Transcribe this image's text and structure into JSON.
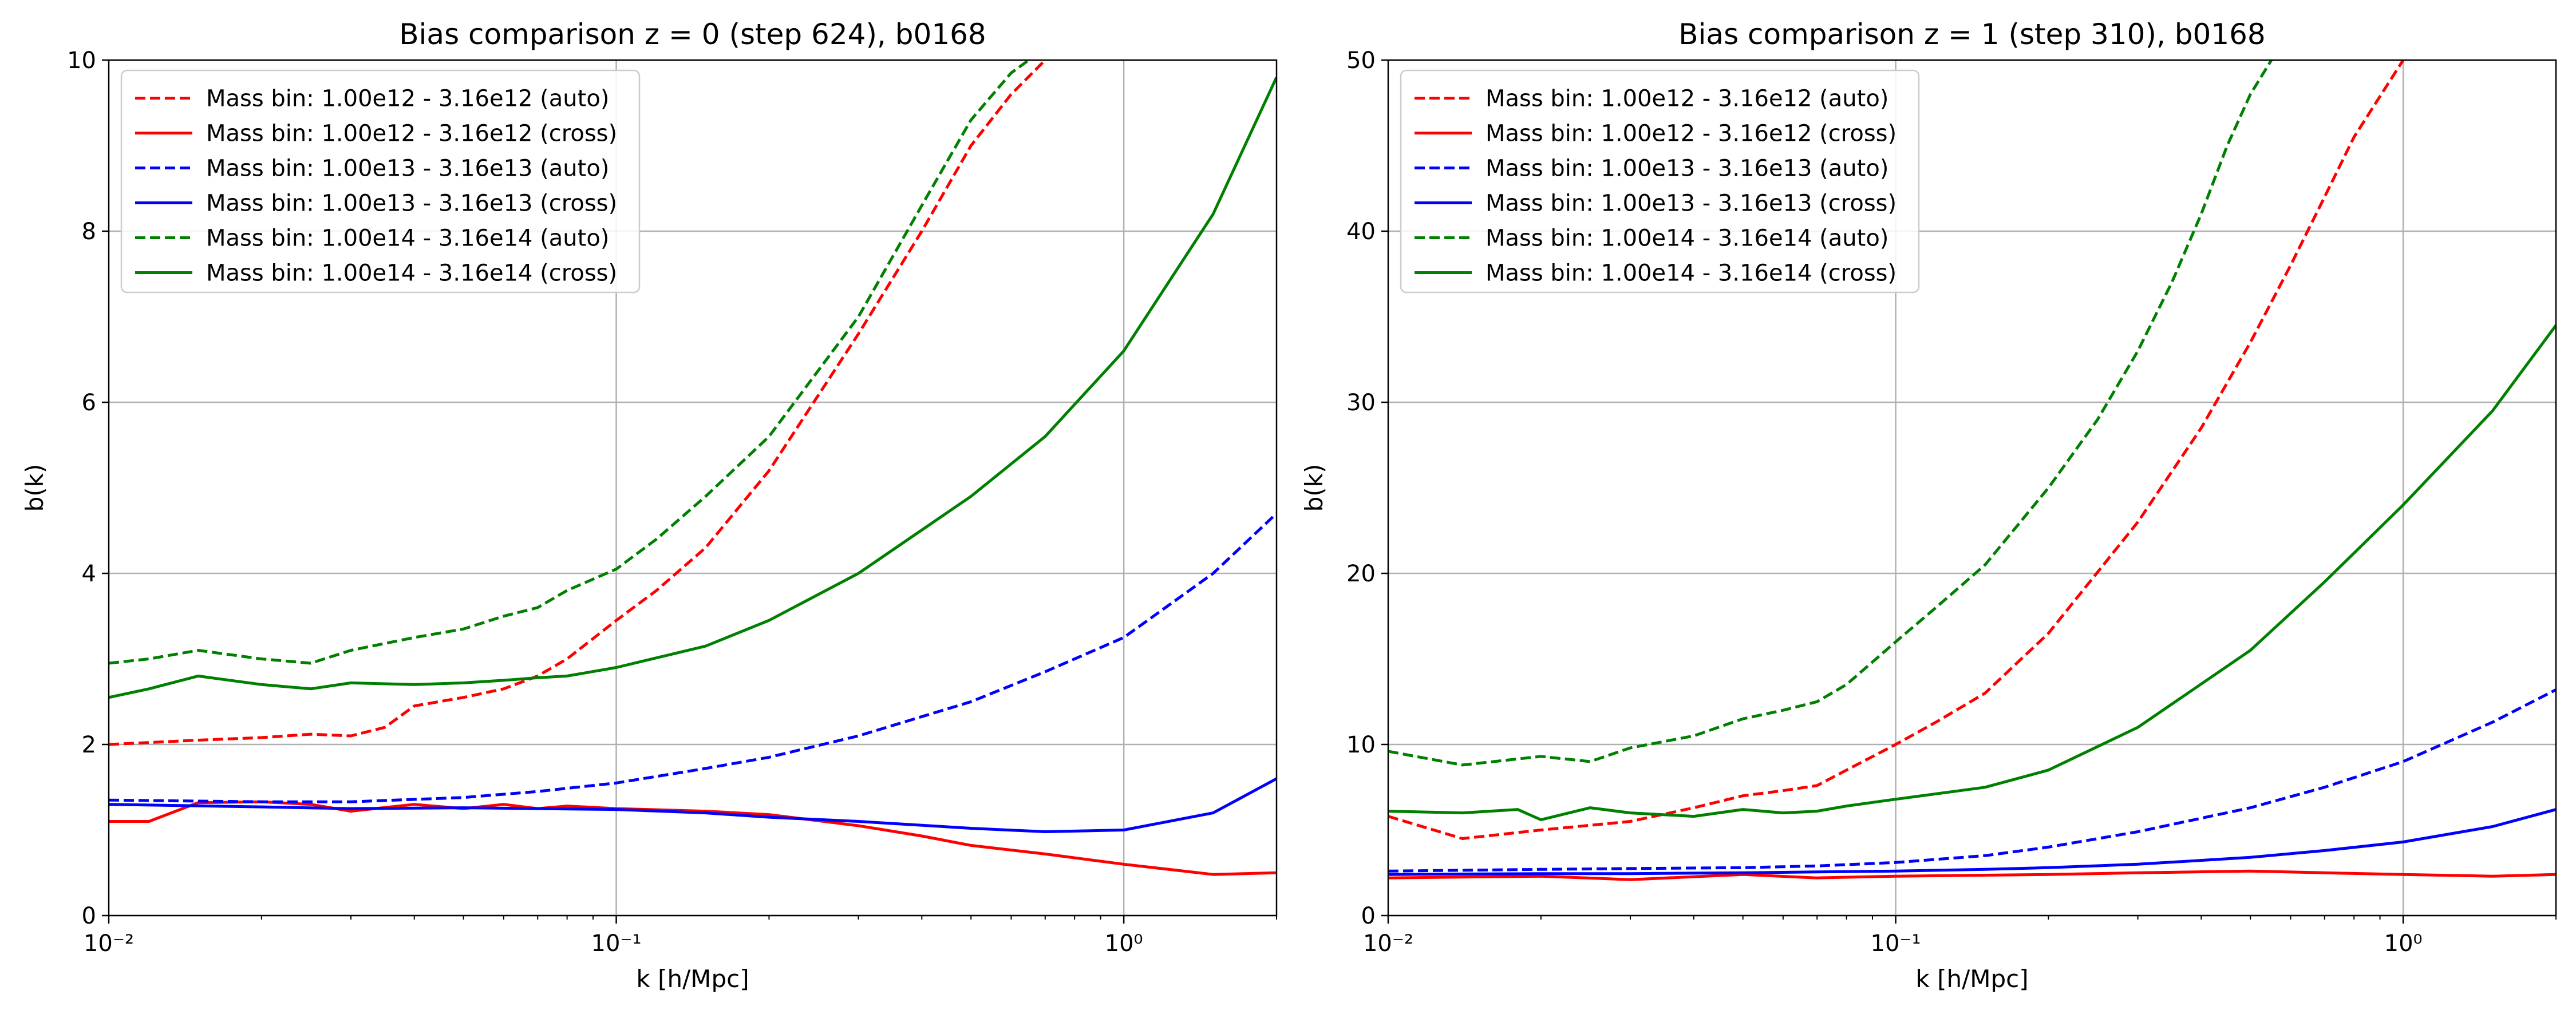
{
  "chart_data": [
    {
      "type": "line",
      "title": "Bias comparison z = 0 (step 624), b0168",
      "xlabel": "k [h/Mpc]",
      "ylabel": "b(k)",
      "xscale": "log",
      "xlim": [
        0.01,
        2.0
      ],
      "ylim": [
        0,
        10
      ],
      "yticks": [
        "0",
        "2",
        "4",
        "6",
        "8",
        "10"
      ],
      "xticks": [
        "10⁻²",
        "10⁻¹",
        "10⁰"
      ],
      "grid": true,
      "legend": "top-left",
      "series": [
        {
          "name": "Mass bin: 1.00e12 - 3.16e12 (auto)",
          "color": "#ff0000",
          "dashed": true,
          "x": [
            0.01,
            0.015,
            0.02,
            0.025,
            0.03,
            0.035,
            0.04,
            0.05,
            0.06,
            0.07,
            0.08,
            0.1,
            0.12,
            0.15,
            0.2,
            0.3,
            0.4,
            0.5,
            0.6,
            0.7
          ],
          "y": [
            2.0,
            2.05,
            2.08,
            2.12,
            2.1,
            2.2,
            2.45,
            2.55,
            2.65,
            2.8,
            3.0,
            3.45,
            3.8,
            4.3,
            5.2,
            6.8,
            8.0,
            9.0,
            9.6,
            10.0
          ]
        },
        {
          "name": "Mass bin: 1.00e12 - 3.16e12 (cross)",
          "color": "#ff0000",
          "dashed": false,
          "x": [
            0.01,
            0.012,
            0.015,
            0.02,
            0.025,
            0.03,
            0.04,
            0.05,
            0.06,
            0.07,
            0.08,
            0.1,
            0.15,
            0.2,
            0.3,
            0.4,
            0.5,
            0.7,
            1.0,
            1.5,
            2.0
          ],
          "y": [
            1.1,
            1.1,
            1.32,
            1.33,
            1.3,
            1.22,
            1.3,
            1.25,
            1.3,
            1.25,
            1.28,
            1.25,
            1.22,
            1.18,
            1.05,
            0.93,
            0.82,
            0.72,
            0.6,
            0.48,
            0.5
          ]
        },
        {
          "name": "Mass bin: 1.00e13 - 3.16e13 (auto)",
          "color": "#0000ff",
          "dashed": true,
          "x": [
            0.01,
            0.02,
            0.03,
            0.05,
            0.07,
            0.1,
            0.15,
            0.2,
            0.3,
            0.5,
            0.7,
            1.0,
            1.5,
            2.0
          ],
          "y": [
            1.35,
            1.33,
            1.33,
            1.38,
            1.45,
            1.55,
            1.72,
            1.85,
            2.1,
            2.5,
            2.85,
            3.25,
            4.0,
            4.7
          ]
        },
        {
          "name": "Mass bin: 1.00e13 - 3.16e13 (cross)",
          "color": "#0000ff",
          "dashed": false,
          "x": [
            0.01,
            0.02,
            0.03,
            0.05,
            0.07,
            0.1,
            0.15,
            0.2,
            0.3,
            0.5,
            0.7,
            1.0,
            1.5,
            2.0
          ],
          "y": [
            1.3,
            1.27,
            1.25,
            1.26,
            1.25,
            1.24,
            1.2,
            1.15,
            1.1,
            1.02,
            0.98,
            1.0,
            1.2,
            1.6
          ]
        },
        {
          "name": "Mass bin: 1.00e14 - 3.16e14 (auto)",
          "color": "#008000",
          "dashed": true,
          "x": [
            0.01,
            0.012,
            0.015,
            0.02,
            0.025,
            0.03,
            0.04,
            0.05,
            0.06,
            0.07,
            0.08,
            0.1,
            0.12,
            0.15,
            0.2,
            0.3,
            0.4,
            0.5,
            0.6,
            0.65
          ],
          "y": [
            2.95,
            3.0,
            3.1,
            3.0,
            2.95,
            3.1,
            3.25,
            3.35,
            3.5,
            3.6,
            3.8,
            4.05,
            4.4,
            4.9,
            5.6,
            7.0,
            8.3,
            9.3,
            9.85,
            10.0
          ]
        },
        {
          "name": "Mass bin: 1.00e14 - 3.16e14 (cross)",
          "color": "#008000",
          "dashed": false,
          "x": [
            0.01,
            0.012,
            0.015,
            0.02,
            0.025,
            0.03,
            0.04,
            0.05,
            0.06,
            0.07,
            0.08,
            0.1,
            0.15,
            0.2,
            0.3,
            0.5,
            0.7,
            1.0,
            1.5,
            2.0
          ],
          "y": [
            2.55,
            2.65,
            2.8,
            2.7,
            2.65,
            2.72,
            2.7,
            2.72,
            2.75,
            2.78,
            2.8,
            2.9,
            3.15,
            3.45,
            4.0,
            4.9,
            5.6,
            6.6,
            8.2,
            9.8
          ]
        }
      ]
    },
    {
      "type": "line",
      "title": "Bias comparison z = 1 (step 310), b0168",
      "xlabel": "k [h/Mpc]",
      "ylabel": "b(k)",
      "xscale": "log",
      "xlim": [
        0.01,
        2.0
      ],
      "ylim": [
        0,
        50
      ],
      "yticks": [
        "0",
        "10",
        "20",
        "30",
        "40",
        "50"
      ],
      "xticks": [
        "10⁻²",
        "10⁻¹",
        "10⁰"
      ],
      "grid": true,
      "legend": "top-left",
      "series": [
        {
          "name": "Mass bin: 1.00e12 - 3.16e12 (auto)",
          "color": "#ff0000",
          "dashed": true,
          "x": [
            0.01,
            0.014,
            0.02,
            0.03,
            0.04,
            0.05,
            0.06,
            0.07,
            0.08,
            0.1,
            0.12,
            0.15,
            0.2,
            0.3,
            0.4,
            0.5,
            0.6,
            0.7,
            0.8,
            1.0
          ],
          "y": [
            5.8,
            4.5,
            5.0,
            5.5,
            6.3,
            7.0,
            7.3,
            7.6,
            8.5,
            10.0,
            11.3,
            13.0,
            16.5,
            23.0,
            28.5,
            33.5,
            38.0,
            42.0,
            45.5,
            50.0
          ]
        },
        {
          "name": "Mass bin: 1.00e12 - 3.16e12 (cross)",
          "color": "#ff0000",
          "dashed": false,
          "x": [
            0.01,
            0.02,
            0.03,
            0.05,
            0.07,
            0.1,
            0.2,
            0.3,
            0.5,
            0.7,
            1.0,
            1.5,
            2.0
          ],
          "y": [
            2.2,
            2.3,
            2.1,
            2.4,
            2.2,
            2.3,
            2.4,
            2.5,
            2.6,
            2.5,
            2.4,
            2.3,
            2.4
          ]
        },
        {
          "name": "Mass bin: 1.00e13 - 3.16e13 (auto)",
          "color": "#0000ff",
          "dashed": true,
          "x": [
            0.01,
            0.02,
            0.03,
            0.05,
            0.07,
            0.1,
            0.15,
            0.2,
            0.3,
            0.5,
            0.7,
            1.0,
            1.5,
            2.0
          ],
          "y": [
            2.6,
            2.7,
            2.75,
            2.8,
            2.9,
            3.1,
            3.5,
            4.0,
            4.9,
            6.3,
            7.5,
            9.0,
            11.3,
            13.2
          ]
        },
        {
          "name": "Mass bin: 1.00e13 - 3.16e13 (cross)",
          "color": "#0000ff",
          "dashed": false,
          "x": [
            0.01,
            0.02,
            0.03,
            0.05,
            0.07,
            0.1,
            0.15,
            0.2,
            0.3,
            0.5,
            0.7,
            1.0,
            1.5,
            2.0
          ],
          "y": [
            2.4,
            2.45,
            2.45,
            2.5,
            2.55,
            2.6,
            2.7,
            2.8,
            3.0,
            3.4,
            3.8,
            4.3,
            5.2,
            6.2
          ]
        },
        {
          "name": "Mass bin: 1.00e14 - 3.16e14 (auto)",
          "color": "#008000",
          "dashed": true,
          "x": [
            0.01,
            0.014,
            0.02,
            0.025,
            0.03,
            0.04,
            0.05,
            0.06,
            0.07,
            0.08,
            0.1,
            0.12,
            0.15,
            0.2,
            0.25,
            0.3,
            0.35,
            0.4,
            0.45,
            0.5,
            0.55
          ],
          "y": [
            9.6,
            8.8,
            9.3,
            9.0,
            9.8,
            10.5,
            11.5,
            12.0,
            12.5,
            13.5,
            16.0,
            18.0,
            20.5,
            25.0,
            29.0,
            33.0,
            37.0,
            41.0,
            45.0,
            48.0,
            50.0
          ]
        },
        {
          "name": "Mass bin: 1.00e14 - 3.16e14 (cross)",
          "color": "#008000",
          "dashed": false,
          "x": [
            0.01,
            0.014,
            0.018,
            0.02,
            0.025,
            0.03,
            0.04,
            0.05,
            0.06,
            0.07,
            0.08,
            0.1,
            0.15,
            0.2,
            0.3,
            0.5,
            0.7,
            1.0,
            1.5,
            2.0
          ],
          "y": [
            6.1,
            6.0,
            6.2,
            5.6,
            6.3,
            6.0,
            5.8,
            6.2,
            6.0,
            6.1,
            6.4,
            6.8,
            7.5,
            8.5,
            11.0,
            15.5,
            19.5,
            24.0,
            29.5,
            34.5
          ]
        }
      ]
    }
  ]
}
